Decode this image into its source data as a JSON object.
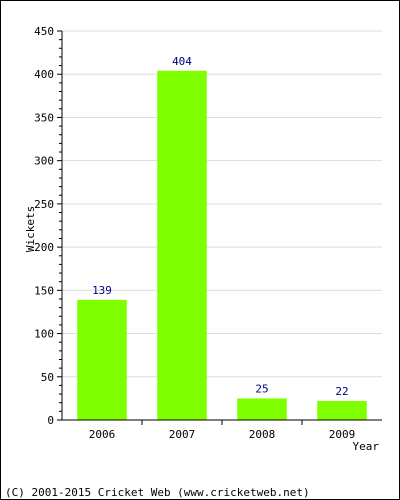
{
  "chart_data": {
    "type": "bar",
    "categories": [
      "2006",
      "2007",
      "2008",
      "2009"
    ],
    "values": [
      139,
      404,
      25,
      22
    ],
    "title": "",
    "xlabel": "Year",
    "ylabel": "Wickets",
    "ylim": [
      0,
      450
    ],
    "yticks": [
      0,
      50,
      100,
      150,
      200,
      250,
      300,
      350,
      400,
      450
    ],
    "grid": true,
    "bar_color": "#80ff00",
    "data_label_color": "#000080",
    "grid_color": "#dddddd"
  },
  "footer": {
    "text": "(C) 2001-2015 Cricket Web (www.cricketweb.net)"
  }
}
